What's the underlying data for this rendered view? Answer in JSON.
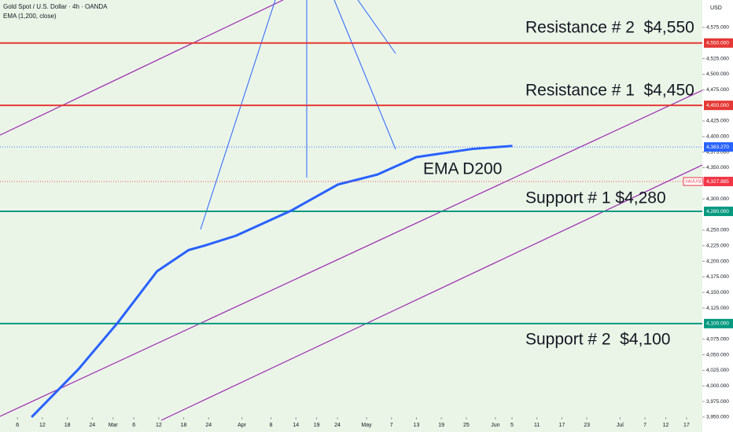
{
  "chart_data": {
    "type": "line",
    "header": {
      "title": "Gold Spot / U.S. Dollar · 4h · OANDA",
      "indicator": "EMA (1,200, close)",
      "currency": "USD"
    },
    "annotation": "EMA D200",
    "series": [
      {
        "name": "EMA D200",
        "color": "#2962ff",
        "x": [
          40.4,
          51.7,
          61.2,
          70.6,
          78.2,
          82,
          89.6,
          102.8,
          114.1,
          123.6,
          133,
          146.3,
          156.1
        ],
        "values": [
          3950,
          4027,
          4102,
          4184,
          4218,
          4225,
          4241,
          4281,
          4323,
          4339,
          4367,
          4380,
          4385
        ]
      }
    ],
    "levels": [
      {
        "value": 4550,
        "label": "4,550.000",
        "color": "#e53935",
        "text": "Resistance # 2  $4,550"
      },
      {
        "value": 4450,
        "label": "4,450.000",
        "color": "#e53935",
        "text": "Resistance # 1  $4,450"
      },
      {
        "value": 4280,
        "label": "4,280.000",
        "color": "#089981",
        "text": "Support # 1 $4,280"
      },
      {
        "value": 4100,
        "label": "4,100.000",
        "color": "#089981",
        "text": "Support # 2  $4,100"
      }
    ],
    "price_tags": [
      {
        "value": 4383.27,
        "label": "4,383.270",
        "color": "#2962ff"
      },
      {
        "value": 4327.885,
        "label": "4,327.885",
        "color": "#f23645",
        "symbol": "XAUUSD"
      }
    ],
    "xlim": [
      32.8,
      201.8
    ],
    "xticks": [
      {
        "value": 37,
        "label": "6"
      },
      {
        "value": 43,
        "label": "12"
      },
      {
        "value": 49,
        "label": "18"
      },
      {
        "value": 55,
        "label": "24"
      },
      {
        "value": 60,
        "label": "Mar"
      },
      {
        "value": 65,
        "label": "6"
      },
      {
        "value": 71,
        "label": "12"
      },
      {
        "value": 77,
        "label": "18"
      },
      {
        "value": 83,
        "label": "24"
      },
      {
        "value": 91,
        "label": "Apr"
      },
      {
        "value": 98,
        "label": "8"
      },
      {
        "value": 104,
        "label": "14"
      },
      {
        "value": 109,
        "label": "19"
      },
      {
        "value": 114,
        "label": "24"
      },
      {
        "value": 121,
        "label": "May"
      },
      {
        "value": 127,
        "label": "7"
      },
      {
        "value": 133,
        "label": "13"
      },
      {
        "value": 139,
        "label": "19"
      },
      {
        "value": 145,
        "label": "25"
      },
      {
        "value": 152,
        "label": "Jun"
      },
      {
        "value": 156,
        "label": "5"
      },
      {
        "value": 162,
        "label": "11"
      },
      {
        "value": 168,
        "label": "17"
      },
      {
        "value": 174,
        "label": "23"
      },
      {
        "value": 182,
        "label": "Jul"
      },
      {
        "value": 188,
        "label": "7"
      },
      {
        "value": 193,
        "label": "12"
      },
      {
        "value": 198,
        "label": "17"
      }
    ],
    "ylim": [
      3926,
      4619
    ],
    "yticks": [
      {
        "value": 3950,
        "label": "3,950.000"
      },
      {
        "value": 3975,
        "label": "3,975.000"
      },
      {
        "value": 4000,
        "label": "4,000.000"
      },
      {
        "value": 4025,
        "label": "4,025.000"
      },
      {
        "value": 4050,
        "label": "4,050.000"
      },
      {
        "value": 4075,
        "label": "4,075.000"
      },
      {
        "value": 4125,
        "label": "4,125.000"
      },
      {
        "value": 4150,
        "label": "4,150.000"
      },
      {
        "value": 4175,
        "label": "4,175.000"
      },
      {
        "value": 4200,
        "label": "4,200.000"
      },
      {
        "value": 4225,
        "label": "4,225.000"
      },
      {
        "value": 4250,
        "label": "4,250.000"
      },
      {
        "value": 4300,
        "label": "4,300.000"
      },
      {
        "value": 4325,
        "label": "4,325.000"
      },
      {
        "value": 4350,
        "label": "4,350.000"
      },
      {
        "value": 4375,
        "label": "4,375.000"
      },
      {
        "value": 4400,
        "label": "4,400.000"
      },
      {
        "value": 4425,
        "label": "4,425.000"
      },
      {
        "value": 4475,
        "label": "4,475.000"
      },
      {
        "value": 4500,
        "label": "4,500.000"
      },
      {
        "value": 4525,
        "label": "4,525.000"
      },
      {
        "value": 4575,
        "label": "4,575.000"
      }
    ]
  }
}
